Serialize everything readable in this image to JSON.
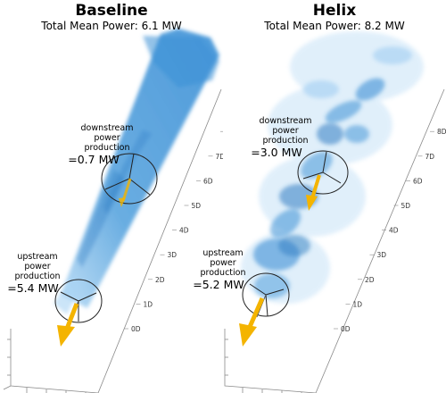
{
  "panels": [
    {
      "title": "Baseline",
      "subtitle": "Total Mean Power: 6.1 MW",
      "downstream": {
        "label": [
          "downstream",
          "power",
          "production"
        ],
        "value": "=0.7 MW"
      },
      "upstream": {
        "label": [
          "upstream",
          "power",
          "production"
        ],
        "value": "=5.4 MW"
      }
    },
    {
      "title": "Helix",
      "subtitle": "Total Mean Power: 8.2 MW",
      "downstream": {
        "label": [
          "downstream",
          "power",
          "production"
        ],
        "value": "=3.0 MW"
      },
      "upstream": {
        "label": [
          "upstream",
          "power",
          "production"
        ],
        "value": "=5.2 MW"
      }
    }
  ],
  "axis_ticks": [
    "0D",
    "1D",
    "2D",
    "3D",
    "4D",
    "5D",
    "6D",
    "7D",
    "8D"
  ],
  "colors": {
    "wake": "#3a8fd6",
    "wake_light": "#a9d3f3",
    "arrow": "#f4b400",
    "axis": "#555555"
  }
}
